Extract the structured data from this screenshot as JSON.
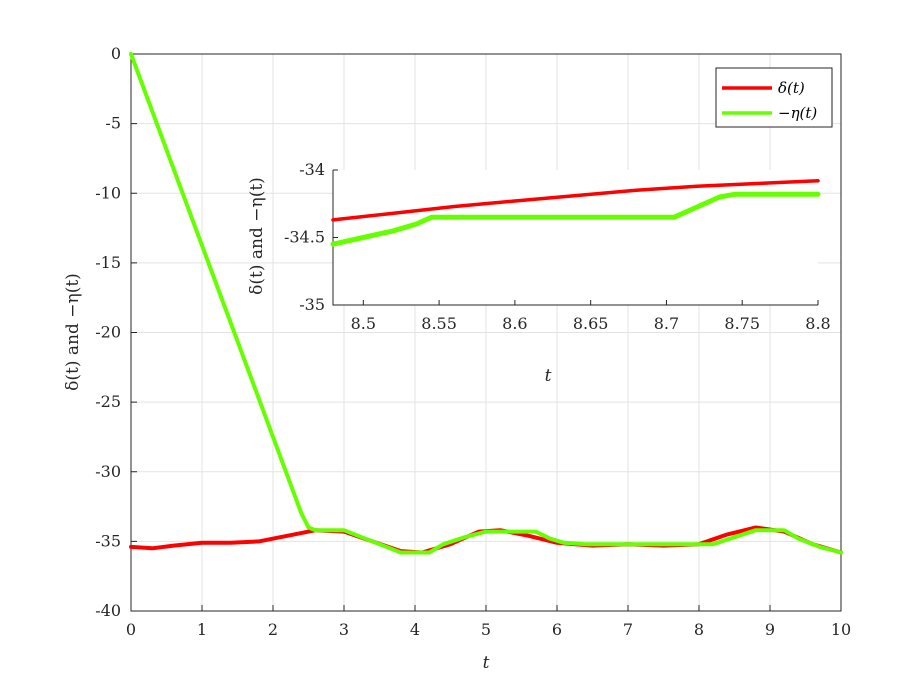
{
  "chart_data": [
    {
      "type": "line",
      "xlabel": "t",
      "ylabel": "δ(t) and −η(t)",
      "xlim": [
        0,
        10
      ],
      "ylim": [
        -40,
        0
      ],
      "xticks": [
        "0",
        "1",
        "2",
        "3",
        "4",
        "5",
        "6",
        "7",
        "8",
        "9",
        "10"
      ],
      "yticks": [
        "0",
        "-5",
        "-10",
        "-15",
        "-20",
        "-25",
        "-30",
        "-35",
        "-40"
      ],
      "grid": true,
      "legend": "top-right",
      "series": [
        {
          "name": "δ(t)",
          "color": "#ff0000",
          "x": [
            0,
            0.3,
            0.6,
            1.0,
            1.4,
            1.8,
            2.2,
            2.6,
            3.0,
            3.4,
            3.8,
            4.1,
            4.5,
            4.9,
            5.2,
            5.6,
            6.0,
            6.5,
            7.0,
            7.5,
            8.0,
            8.4,
            8.8,
            9.2,
            9.6,
            10.0
          ],
          "y": [
            -35.4,
            -35.5,
            -35.3,
            -35.1,
            -35.1,
            -35.0,
            -34.6,
            -34.2,
            -34.3,
            -35.0,
            -35.7,
            -35.8,
            -35.2,
            -34.3,
            -34.2,
            -34.6,
            -35.1,
            -35.3,
            -35.2,
            -35.3,
            -35.2,
            -34.5,
            -34.0,
            -34.3,
            -35.2,
            -35.8
          ]
        },
        {
          "name": "−η(t)",
          "color": "#66ff00",
          "x": [
            0,
            2.4,
            2.45,
            2.5,
            2.6,
            3.0,
            3.2,
            3.5,
            3.8,
            4.2,
            4.4,
            4.7,
            5.0,
            5.7,
            5.9,
            6.1,
            6.4,
            7.7,
            8.2,
            8.5,
            8.8,
            9.2,
            9.4,
            9.7,
            10.0
          ],
          "y": [
            0,
            -33.0,
            -33.5,
            -34.0,
            -34.2,
            -34.2,
            -34.6,
            -35.2,
            -35.8,
            -35.8,
            -35.2,
            -34.7,
            -34.3,
            -34.3,
            -34.8,
            -35.1,
            -35.2,
            -35.2,
            -35.2,
            -34.7,
            -34.2,
            -34.2,
            -34.8,
            -35.4,
            -35.8
          ]
        }
      ]
    },
    {
      "type": "line",
      "xlabel": "t",
      "ylabel": "δ(t) and −η(t)",
      "xlim": [
        8.48,
        8.8
      ],
      "ylim": [
        -35,
        -34
      ],
      "xticks": [
        "8.5",
        "8.55",
        "8.6",
        "8.65",
        "8.7",
        "8.75",
        "8.8"
      ],
      "yticks": [
        "-34",
        "-34.5",
        "-35"
      ],
      "grid": false,
      "series": [
        {
          "name": "δ(t)",
          "color": "#ff0000",
          "x": [
            8.48,
            8.52,
            8.56,
            8.6,
            8.64,
            8.68,
            8.72,
            8.76,
            8.8
          ],
          "y": [
            -34.37,
            -34.32,
            -34.27,
            -34.23,
            -34.19,
            -34.15,
            -34.12,
            -34.1,
            -34.08
          ]
        },
        {
          "name": "−η(t)",
          "color": "#66ff00",
          "x": [
            8.48,
            8.5,
            8.52,
            8.535,
            8.545,
            8.6,
            8.65,
            8.705,
            8.715,
            8.725,
            8.735,
            8.745,
            8.8
          ],
          "y": [
            -34.55,
            -34.5,
            -34.45,
            -34.4,
            -34.35,
            -34.35,
            -34.35,
            -34.35,
            -34.3,
            -34.25,
            -34.2,
            -34.18,
            -34.18
          ]
        }
      ]
    }
  ]
}
